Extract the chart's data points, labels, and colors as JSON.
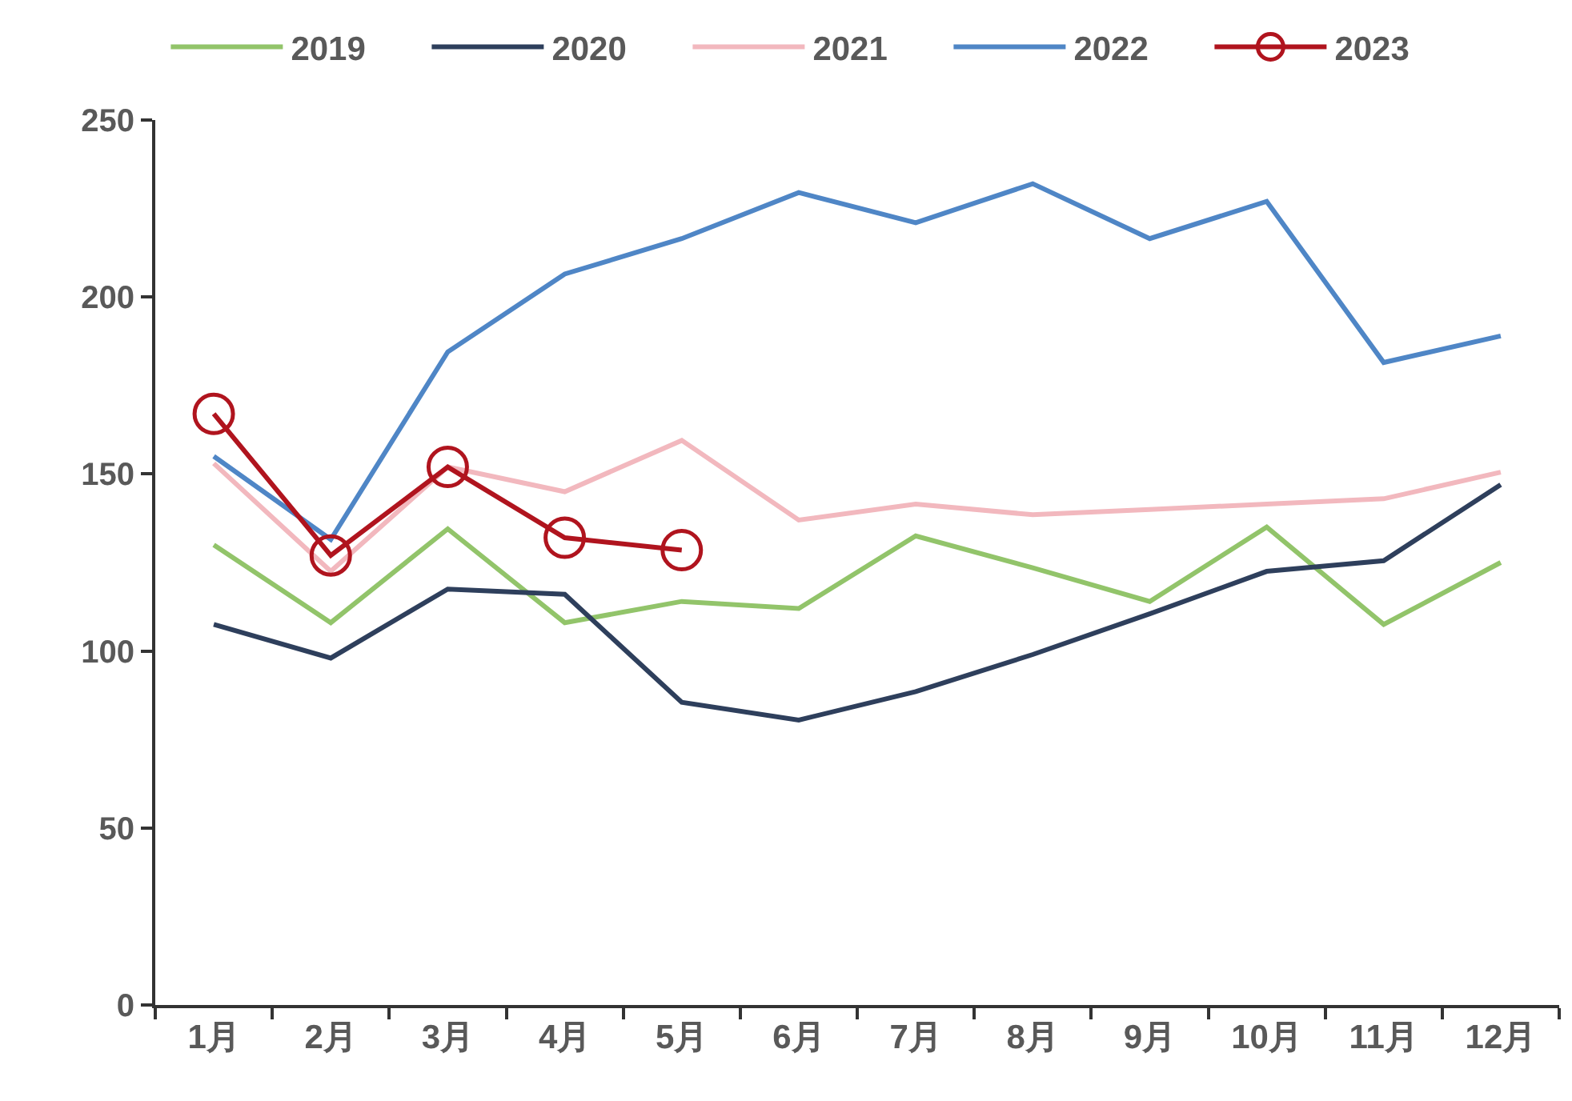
{
  "chart_data": {
    "type": "line",
    "categories": [
      "1月",
      "2月",
      "3月",
      "4月",
      "5月",
      "6月",
      "7月",
      "8月",
      "9月",
      "10月",
      "11月",
      "12月"
    ],
    "series": [
      {
        "name": "2019",
        "color": "#92c46a",
        "values": [
          130,
          108,
          134.5,
          108,
          114,
          112,
          132.5,
          123.5,
          114,
          135,
          107.5,
          125
        ]
      },
      {
        "name": "2020",
        "color": "#2e3f5c",
        "values": [
          107.5,
          98,
          117.5,
          116,
          85.5,
          80.5,
          88.5,
          99,
          110.5,
          122.5,
          125.5,
          147
        ]
      },
      {
        "name": "2021",
        "color": "#f2b8be",
        "values": [
          153,
          122.5,
          152,
          145,
          159.5,
          137,
          141.5,
          138.5,
          140,
          141.5,
          143,
          150.5
        ]
      },
      {
        "name": "2022",
        "color": "#4f86c6",
        "values": [
          155,
          131.5,
          184.5,
          206.5,
          216.5,
          229.5,
          221,
          232,
          216.5,
          227,
          181.5,
          189
        ]
      },
      {
        "name": "2023",
        "color": "#b0141e",
        "marker": "circle",
        "values": [
          167,
          127,
          152,
          132,
          128.5,
          null,
          null,
          null,
          null,
          null,
          null,
          null
        ]
      }
    ],
    "ylim": [
      0,
      250
    ],
    "yticks": [
      0,
      50,
      100,
      150,
      200,
      250
    ],
    "legend": "top"
  }
}
